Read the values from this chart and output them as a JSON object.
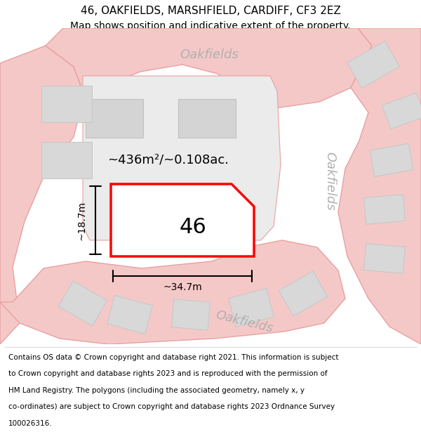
{
  "title": "46, OAKFIELDS, MARSHFIELD, CARDIFF, CF3 2EZ",
  "subtitle": "Map shows position and indicative extent of the property.",
  "footer_lines": [
    "Contains OS data © Crown copyright and database right 2021. This information is subject",
    "to Crown copyright and database rights 2023 and is reproduced with the permission of",
    "HM Land Registry. The polygons (including the associated geometry, namely x, y",
    "co-ordinates) are subject to Crown copyright and database rights 2023 Ordnance Survey",
    "100026316."
  ],
  "map_bg": "#f7f7f7",
  "road_color": "#f5c8c8",
  "road_line_color": "#e8a0a0",
  "building_color": "#d8d8d8",
  "building_edge": "#cccccc",
  "plot_fill": "white",
  "plot_edge": "red",
  "area_text": "~436m²/~0.108ac.",
  "number_text": "46",
  "width_label": "~34.7m",
  "height_label": "~18.7m",
  "road_label_color": "#b0b0b0",
  "title_fontsize": 11,
  "subtitle_fontsize": 10,
  "footer_fontsize": 7.5
}
